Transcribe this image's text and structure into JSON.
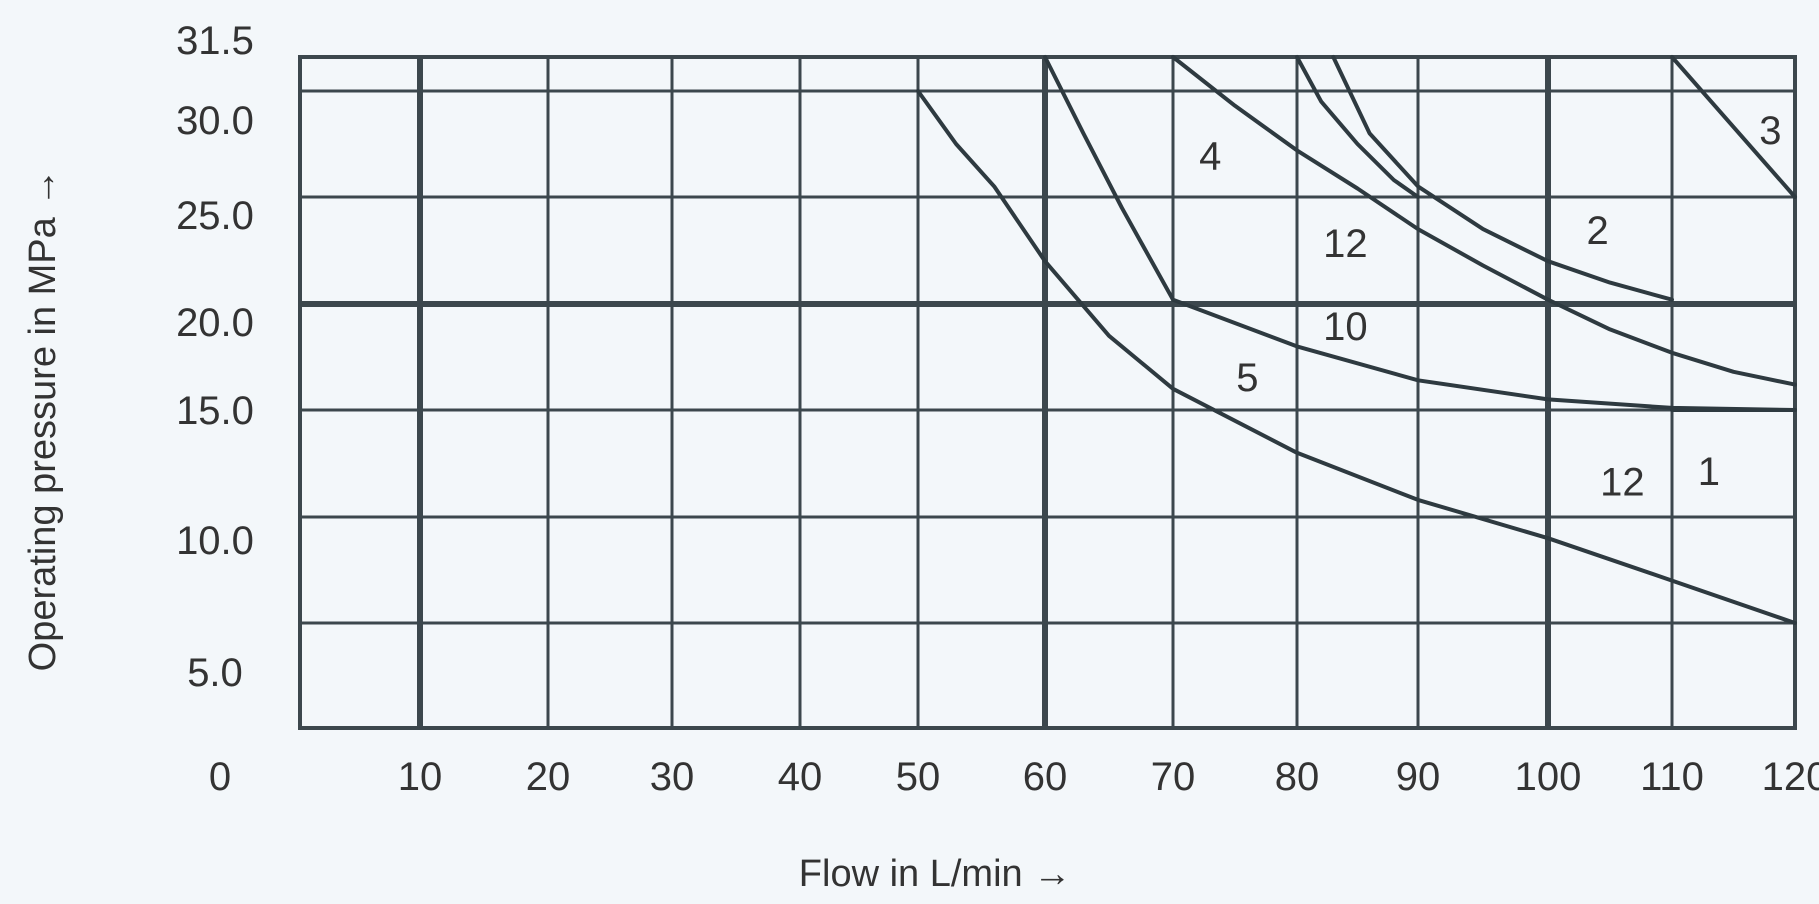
{
  "chart_data": {
    "type": "line",
    "xlabel": "Flow in L/min →",
    "ylabel": "Operating pressure in MPa →",
    "x_tick_labels": [
      "0",
      "10",
      "20",
      "30",
      "40",
      "50",
      "60",
      "70",
      "80",
      "90",
      "100",
      "110",
      "120"
    ],
    "y_tick_labels": [
      "5.0",
      "10.0",
      "15.0",
      "20.0",
      "25.0",
      "30.0",
      "31.5"
    ],
    "grid": true,
    "colors": {
      "curve": "#2e3a40",
      "grid": "#3c474d",
      "background": "#f3f7fa"
    },
    "series": [
      {
        "name": "1",
        "points": [
          [
            110,
            15.0
          ],
          [
            120,
            15.0
          ]
        ]
      },
      {
        "name": "2",
        "points": [
          [
            83,
            31.5
          ],
          [
            86,
            28
          ],
          [
            90,
            25.5
          ],
          [
            95,
            23.5
          ],
          [
            100,
            22.0
          ],
          [
            105,
            21.0
          ],
          [
            110,
            20.2
          ]
        ]
      },
      {
        "name": "3",
        "points": [
          [
            110,
            31.5
          ],
          [
            120,
            25.0
          ]
        ]
      },
      {
        "name": "4",
        "points": [
          [
            70,
            31.5
          ],
          [
            75,
            29.3
          ],
          [
            80,
            27.2
          ],
          [
            85,
            25.4
          ],
          [
            90,
            23.5
          ],
          [
            95,
            21.8
          ],
          [
            100,
            20.2
          ],
          [
            105,
            18.8
          ],
          [
            110,
            17.7
          ],
          [
            115,
            16.8
          ],
          [
            120,
            16.2
          ]
        ]
      },
      {
        "name": "5",
        "points": [
          [
            50,
            30.0
          ],
          [
            53,
            27.5
          ],
          [
            56,
            25.5
          ],
          [
            60,
            22.0
          ],
          [
            65,
            18.5
          ],
          [
            70,
            16.0
          ],
          [
            80,
            13.0
          ],
          [
            90,
            10.8
          ],
          [
            100,
            9.0
          ],
          [
            110,
            7.0
          ],
          [
            120,
            5.0
          ]
        ]
      },
      {
        "name": "10",
        "points": [
          [
            70,
            20.2
          ],
          [
            80,
            18.0
          ],
          [
            90,
            16.4
          ],
          [
            100,
            15.5
          ],
          [
            110,
            15.1
          ],
          [
            120,
            15.0
          ]
        ]
      },
      {
        "name": "12",
        "points": [
          [
            60,
            31.5
          ],
          [
            63,
            28.0
          ],
          [
            66,
            24.5
          ],
          [
            70,
            20.2
          ]
        ]
      },
      {
        "name": "12",
        "points": [
          [
            80,
            31.5
          ],
          [
            82,
            29.5
          ],
          [
            85,
            27.5
          ],
          [
            88,
            25.8
          ],
          [
            90,
            25.0
          ]
        ]
      }
    ],
    "curve_labels": [
      {
        "text": "1",
        "x": 113,
        "y": 12.0
      },
      {
        "text": "2",
        "x": 104,
        "y": 23.3
      },
      {
        "text": "3",
        "x": 118,
        "y": 28.0
      },
      {
        "text": "4",
        "x": 73,
        "y": 26.8
      },
      {
        "text": "5",
        "x": 76,
        "y": 16.4
      },
      {
        "text": "10",
        "x": 84,
        "y": 18.8
      },
      {
        "text": "12",
        "x": 84,
        "y": 22.7
      },
      {
        "text": "12",
        "x": 106,
        "y": 11.5
      }
    ]
  }
}
